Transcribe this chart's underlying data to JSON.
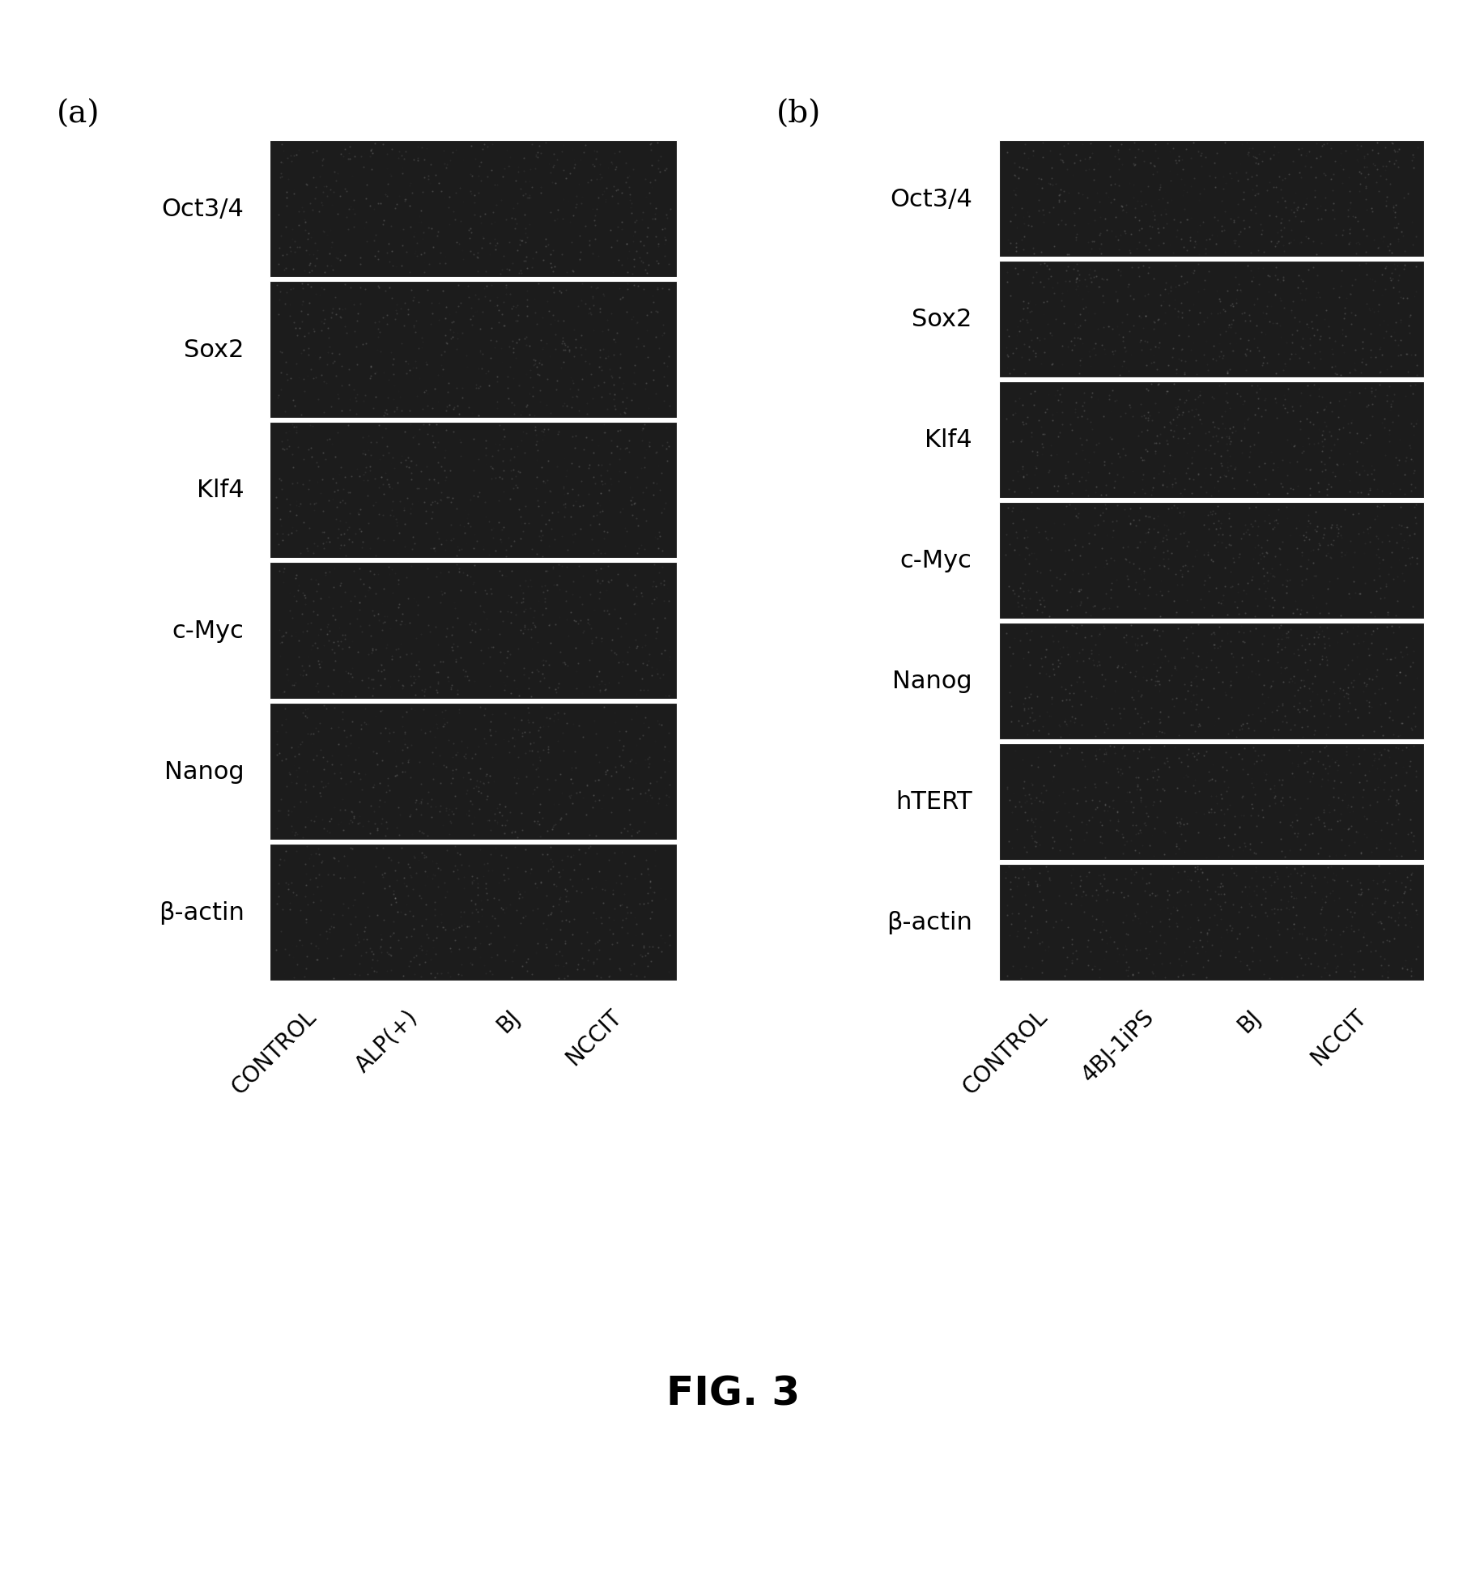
{
  "panel_a_label": "(a)",
  "panel_b_label": "(b)",
  "panel_a_genes": [
    "Oct3/4",
    "Sox2",
    "Klf4",
    "c-Myc",
    "Nanog",
    "β-actin"
  ],
  "panel_b_genes": [
    "Oct3/4",
    "Sox2",
    "Klf4",
    "c-Myc",
    "Nanog",
    "hTERT",
    "β-actin"
  ],
  "panel_a_xlabels": [
    "CONTROL",
    "ALP(+)",
    "BJ",
    "NCCIT"
  ],
  "panel_b_xlabels": [
    "CONTROL",
    "4BJ-1iPS",
    "BJ",
    "NCCIT"
  ],
  "fig_title": "FIG. 3",
  "background_color": "#ffffff",
  "band_bg_color": "#1a1a1a",
  "band_border_color": "#ffffff",
  "label_fontsize": 22,
  "panel_label_fontsize": 28,
  "title_fontsize": 36,
  "xlabel_fontsize": 20
}
